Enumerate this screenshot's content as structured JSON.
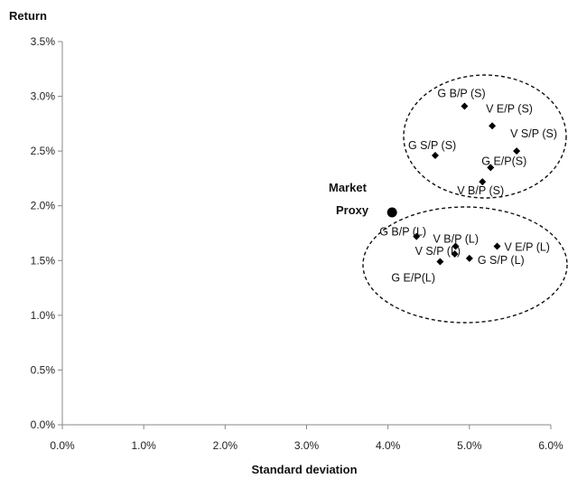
{
  "chart_data": {
    "type": "scatter",
    "title": "",
    "xlabel": "Standard deviation",
    "ylabel": "Return",
    "xlim": [
      0.0,
      6.0
    ],
    "ylim": [
      0.0,
      3.5
    ],
    "x_ticks": [
      "0.0%",
      "1.0%",
      "2.0%",
      "3.0%",
      "4.0%",
      "5.0%",
      "6.0%"
    ],
    "y_ticks": [
      "0.0%",
      "0.5%",
      "1.0%",
      "1.5%",
      "2.0%",
      "2.5%",
      "3.0%",
      "3.5%"
    ],
    "grid": false,
    "legend": "none",
    "marker_color": "#000000",
    "market_proxy": {
      "label_line1": "Market",
      "label_line2": "Proxy",
      "x": 4.05,
      "y": 1.94
    },
    "points": [
      {
        "label": "G B/P (S)",
        "x": 4.94,
        "y": 2.91
      },
      {
        "label": "V E/P (S)",
        "x": 5.28,
        "y": 2.73
      },
      {
        "label": "V S/P (S)",
        "x": 5.58,
        "y": 2.5
      },
      {
        "label": "G S/P (S)",
        "x": 4.58,
        "y": 2.46
      },
      {
        "label": "G E/P(S)",
        "x": 5.26,
        "y": 2.35
      },
      {
        "label": "V B/P (S)",
        "x": 5.16,
        "y": 2.22
      },
      {
        "label": "G B/P (L)",
        "x": 4.35,
        "y": 1.72
      },
      {
        "label": "V B/P (L)",
        "x": 4.83,
        "y": 1.63
      },
      {
        "label": "V E/P (L)",
        "x": 5.34,
        "y": 1.63
      },
      {
        "label": "V S/P (L)",
        "x": 4.82,
        "y": 1.56
      },
      {
        "label": "G S/P (L)",
        "x": 5.0,
        "y": 1.52
      },
      {
        "label": "G E/P(L)",
        "x": 4.64,
        "y": 1.49
      }
    ]
  }
}
